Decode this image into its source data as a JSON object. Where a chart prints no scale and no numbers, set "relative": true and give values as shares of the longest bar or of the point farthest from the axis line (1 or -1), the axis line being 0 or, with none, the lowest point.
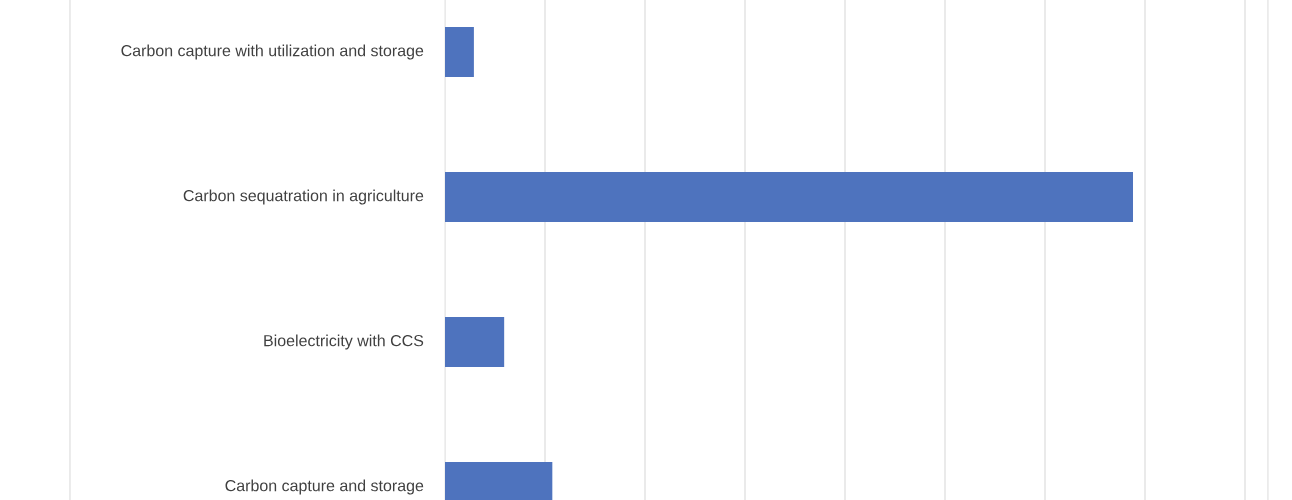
{
  "chart_data": {
    "type": "bar",
    "orientation": "horizontal",
    "relative": true,
    "grid": "x",
    "color": "#4e73be",
    "categories": [
      "Carbon capture with utilization and storage",
      "Carbon sequatration  in agriculture",
      "Bioelectricity with CCS",
      "Carbon capture and storage"
    ],
    "values": [
      0.042,
      1,
      0.086,
      0.156
    ]
  }
}
